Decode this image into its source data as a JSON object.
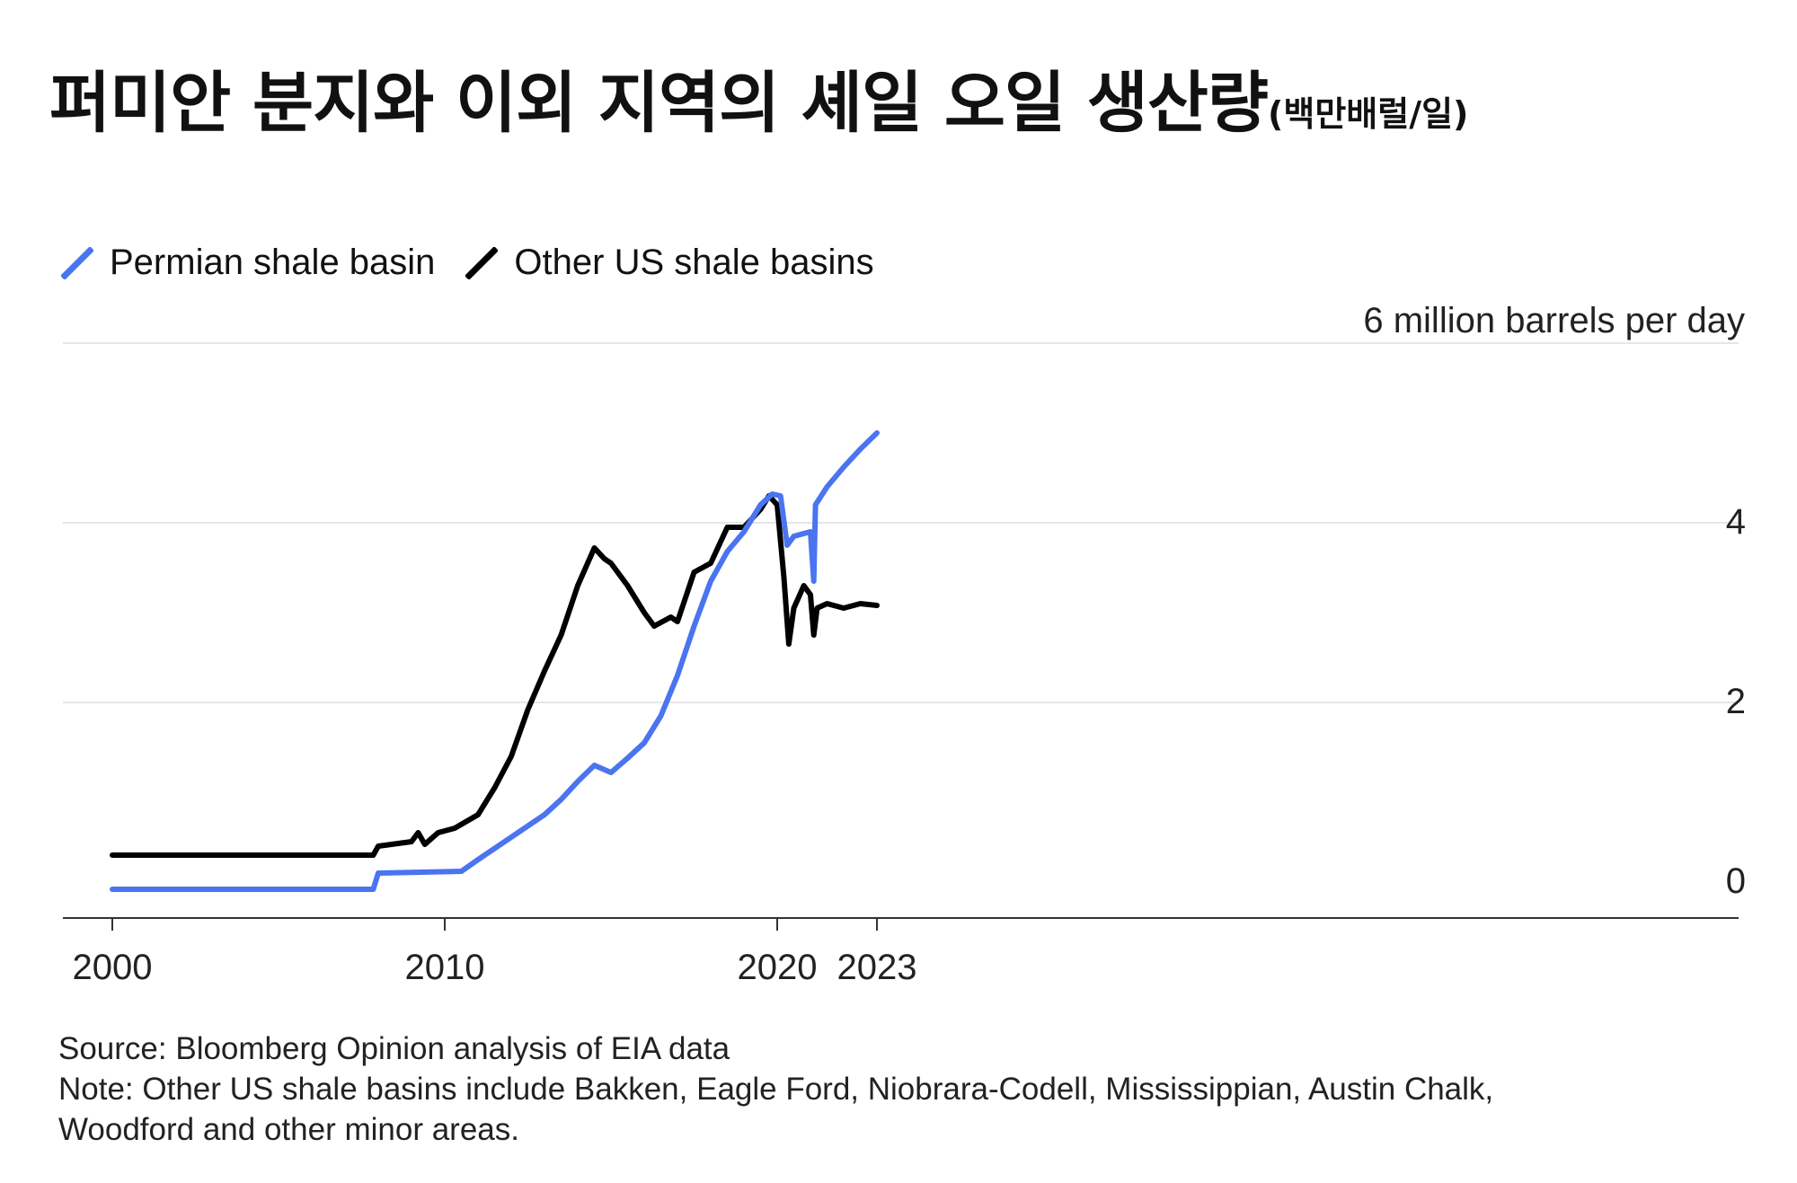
{
  "title": {
    "main": "퍼미안 분지와 이외 지역의 셰일 오일 생산량",
    "unit": "(백만배럴/일)"
  },
  "legend": [
    {
      "label": "Permian shale basin",
      "color": "#4a74f0"
    },
    {
      "label": "Other US shale basins",
      "color": "#000000"
    }
  ],
  "unit_label": "6 million barrels per day",
  "source": "Source: Bloomberg Opinion analysis of EIA data",
  "note_line1": "Note: Other US shale basins include Bakken, Eagle Ford, Niobrara-Codell, Mississippian, Austin Chalk,",
  "note_line2": "Woodford and other minor areas.",
  "chart_data": {
    "type": "line",
    "xlim": [
      2000,
      2024.3
    ],
    "ylim": [
      0,
      6
    ],
    "x_ticks": [
      2000,
      2010,
      2020,
      2023
    ],
    "x_tick_labels": [
      "2000",
      "2010",
      "2020",
      "2023"
    ],
    "y_ticks": [
      0,
      2,
      4
    ],
    "y_tick_labels": [
      "0",
      "2",
      "4"
    ],
    "grid": true,
    "legend_position": "top-left",
    "series": [
      {
        "name": "Permian shale basin",
        "color": "#4a74f0",
        "x": [
          2000,
          2007.85,
          2008.0,
          2010.5,
          2011.0,
          2012.0,
          2013.0,
          2013.5,
          2014.0,
          2014.5,
          2015.0,
          2015.5,
          2016.0,
          2016.5,
          2017.0,
          2017.5,
          2018.0,
          2018.5,
          2019.0,
          2019.5,
          2019.85,
          2020.1,
          2020.3,
          2020.5,
          2021.0,
          2021.1,
          2021.15,
          2021.5,
          2022.0,
          2022.5,
          2023.0
        ],
        "y": [
          -0.08,
          -0.08,
          0.1,
          0.12,
          0.25,
          0.5,
          0.75,
          0.92,
          1.12,
          1.3,
          1.22,
          1.38,
          1.55,
          1.85,
          2.3,
          2.85,
          3.35,
          3.68,
          3.9,
          4.2,
          4.32,
          4.3,
          3.75,
          3.85,
          3.9,
          3.35,
          4.2,
          4.4,
          4.62,
          4.82,
          5.0
        ]
      },
      {
        "name": "Other US shale basins",
        "color": "#000000",
        "x": [
          2000,
          2007.85,
          2008.0,
          2009.0,
          2009.2,
          2009.4,
          2009.8,
          2010.3,
          2011.0,
          2011.5,
          2012.0,
          2012.5,
          2013.0,
          2013.5,
          2014.0,
          2014.5,
          2014.8,
          2015.0,
          2015.5,
          2016.0,
          2016.3,
          2016.8,
          2017.0,
          2017.5,
          2018.0,
          2018.5,
          2019.0,
          2019.5,
          2019.75,
          2020.0,
          2020.2,
          2020.35,
          2020.5,
          2020.8,
          2021.0,
          2021.1,
          2021.2,
          2021.5,
          2022.0,
          2022.5,
          2023.0
        ],
        "y": [
          0.3,
          0.3,
          0.4,
          0.45,
          0.55,
          0.42,
          0.55,
          0.6,
          0.75,
          1.05,
          1.4,
          1.92,
          2.35,
          2.75,
          3.3,
          3.72,
          3.6,
          3.55,
          3.3,
          3.0,
          2.85,
          2.95,
          2.9,
          3.45,
          3.55,
          3.95,
          3.95,
          4.15,
          4.3,
          4.2,
          3.4,
          2.65,
          3.05,
          3.3,
          3.2,
          2.75,
          3.05,
          3.1,
          3.05,
          3.1,
          3.08
        ]
      }
    ]
  }
}
